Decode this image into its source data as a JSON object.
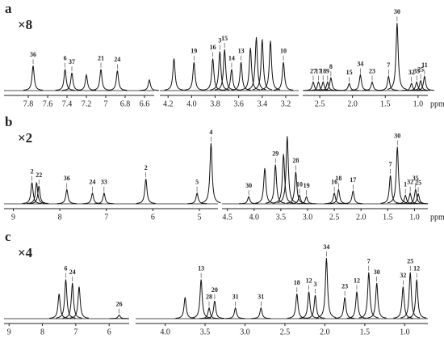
{
  "chart_data": [
    {
      "type": "spectrum",
      "panel": "a",
      "multiplier": "×8",
      "x_label": "ppm",
      "color": "#111111",
      "segments": [
        {
          "xlim": [
            8.05,
            6.5
          ],
          "xticks": [
            7.8,
            7.6,
            7.4,
            7.2,
            7.0,
            6.8,
            6.6
          ],
          "peaks": {
            "labels": [
              "36",
              "6",
              "37",
              "21",
              "24",
              null,
              null
            ],
            "x": [
              7.75,
              7.42,
              7.35,
              7.05,
              6.88,
              7.2,
              6.55
            ],
            "values": [
              0.35,
              0.3,
              0.25,
              0.3,
              0.28,
              0.22,
              0.15
            ]
          }
        },
        {
          "xlim": [
            4.27,
            3.09
          ],
          "xticks": [
            4.2,
            {
              "value": 4,
              "label": "4.0"
            },
            3.8,
            3.6,
            3.4,
            3.2
          ],
          "peaks": {
            "labels": [
              "19",
              "16",
              "3",
              "15",
              "14",
              "13",
              "10",
              null,
              null,
              null,
              null,
              null
            ],
            "x": [
              3.98,
              3.82,
              3.76,
              3.72,
              3.66,
              3.58,
              3.22,
              4.15,
              3.45,
              3.4,
              3.33,
              3.5
            ],
            "values": [
              0.4,
              0.45,
              0.55,
              0.58,
              0.3,
              0.4,
              0.4,
              0.45,
              0.75,
              0.72,
              0.7,
              0.6
            ]
          }
        },
        {
          "xlim": [
            2.76,
            0.85
          ],
          "xticks": [
            2.5,
            {
              "value": 2,
              "label": "2.0"
            },
            1.5,
            {
              "value": 1,
              "label": "1.0"
            }
          ],
          "peaks": {
            "labels": [
              "27",
              "17",
              "18",
              "9",
              "8",
              "15",
              "34",
              "23",
              "7",
              "30",
              "32",
              "35",
              "25",
              "11"
            ],
            "x": [
              2.6,
              2.52,
              2.45,
              2.38,
              2.33,
              2.05,
              1.88,
              1.7,
              1.45,
              1.32,
              1.1,
              1.02,
              0.96,
              0.9
            ],
            "values": [
              0.12,
              0.12,
              0.12,
              0.12,
              0.18,
              0.1,
              0.22,
              0.12,
              0.2,
              0.95,
              0.1,
              0.12,
              0.14,
              0.2
            ]
          }
        }
      ]
    },
    {
      "type": "spectrum",
      "panel": "b",
      "multiplier": "×2",
      "x_label": "ppm",
      "color": "#111111",
      "segments": [
        {
          "xlim": [
            9.2,
            4.6
          ],
          "xticks": [
            9,
            8,
            7,
            6,
            5
          ],
          "peaks": {
            "labels": [
              "2",
              "22",
              "36",
              "24",
              "33",
              "2",
              "5",
              "4",
              null
            ],
            "x": [
              8.6,
              8.45,
              7.85,
              7.3,
              7.05,
              6.15,
              5.05,
              4.75,
              8.5
            ],
            "values": [
              0.3,
              0.25,
              0.2,
              0.15,
              0.15,
              0.35,
              0.15,
              0.85,
              0.3
            ]
          }
        },
        {
          "xlim": [
            4.6,
            0.75
          ],
          "xticks": [
            4.5,
            {
              "value": 4,
              "label": "4.0"
            },
            3.5,
            {
              "value": 3,
              "label": "3.0"
            },
            2.5,
            {
              "value": 2,
              "label": "2.0"
            },
            1.5,
            {
              "value": 1,
              "label": "1.0"
            }
          ],
          "peaks": {
            "labels": [
              "30",
              "29",
              "28",
              "10",
              "19",
              "16",
              "18",
              "17",
              "7",
              "30",
              "1",
              "32",
              "35",
              "25",
              null,
              null,
              null
            ],
            "x": [
              4.1,
              3.6,
              3.22,
              3.15,
              3.02,
              2.5,
              2.42,
              2.15,
              1.45,
              1.32,
              1.17,
              1.08,
              0.98,
              0.93,
              3.8,
              3.45,
              3.38
            ],
            "values": [
              0.1,
              0.55,
              0.45,
              0.12,
              0.1,
              0.15,
              0.2,
              0.18,
              0.4,
              0.8,
              0.12,
              0.15,
              0.2,
              0.14,
              0.5,
              0.7,
              0.95
            ]
          }
        }
      ]
    },
    {
      "type": "spectrum",
      "panel": "c",
      "multiplier": "×4",
      "color": "#111111",
      "segments": [
        {
          "xlim": [
            9.15,
            5.4
          ],
          "xticks": [
            9,
            8,
            7,
            6
          ],
          "peaks": {
            "labels": [
              "6",
              "24",
              "26",
              null,
              null
            ],
            "x": [
              7.3,
              7.1,
              5.7,
              6.9,
              7.5
            ],
            "values": [
              0.55,
              0.5,
              0.05,
              0.45,
              0.35
            ]
          }
        },
        {
          "xlim": [
            4.37,
            0.71
          ],
          "xticks": [
            {
              "value": 4,
              "label": "4.0"
            },
            3.5,
            {
              "value": 3,
              "label": "3.0"
            },
            2.5,
            {
              "value": 2,
              "label": "2.0"
            },
            1.5,
            {
              "value": 1,
              "label": "1.0"
            }
          ],
          "peaks": {
            "labels": [
              "13",
              "28",
              "20",
              "31",
              "31",
              "18",
              "12",
              "3",
              "34",
              "23",
              "12",
              "7",
              "30",
              "32",
              "25",
              "12",
              null
            ],
            "x": [
              3.55,
              3.45,
              3.38,
              3.12,
              2.8,
              2.35,
              2.2,
              2.12,
              1.98,
              1.75,
              1.6,
              1.45,
              1.35,
              1.02,
              0.93,
              0.85,
              3.75
            ],
            "values": [
              0.55,
              0.15,
              0.25,
              0.15,
              0.15,
              0.35,
              0.38,
              0.33,
              0.85,
              0.3,
              0.38,
              0.65,
              0.5,
              0.45,
              0.65,
              0.55,
              0.3
            ]
          }
        }
      ]
    }
  ]
}
